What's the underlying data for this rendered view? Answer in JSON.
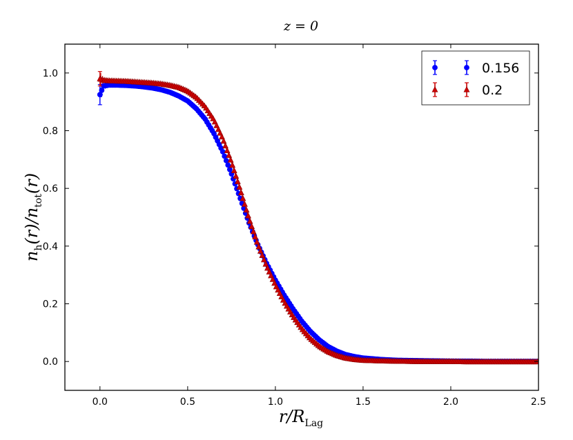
{
  "chart_data": {
    "type": "scatter",
    "title": "z = 0",
    "xlabel": "r / R_Lag",
    "ylabel": "n_h(r) / n_tot(r)",
    "xlim": [
      -0.2,
      2.5
    ],
    "ylim": [
      -0.1,
      1.1
    ],
    "xticks": [
      0.0,
      0.5,
      1.0,
      1.5,
      2.0,
      2.5
    ],
    "xtick_labels": [
      "0.0",
      "0.5",
      "1.0",
      "1.5",
      "2.0",
      "2.5"
    ],
    "yticks": [
      0.0,
      0.2,
      0.4,
      0.6,
      0.8,
      1.0
    ],
    "ytick_labels": [
      "0.0",
      "0.2",
      "0.4",
      "0.6",
      "0.8",
      "1.0"
    ],
    "grid": false,
    "legend_position": "top-right",
    "series": [
      {
        "name": "0.156",
        "marker": "circle",
        "color": "#0000ff",
        "x": [
          0.0,
          0.02,
          0.05,
          0.1,
          0.15,
          0.2,
          0.25,
          0.3,
          0.35,
          0.4,
          0.45,
          0.5,
          0.55,
          0.6,
          0.65,
          0.7,
          0.75,
          0.8,
          0.85,
          0.9,
          0.95,
          1.0,
          1.05,
          1.1,
          1.15,
          1.2,
          1.25,
          1.3,
          1.35,
          1.4,
          1.45,
          1.5,
          1.6,
          1.7,
          1.8,
          1.9,
          2.0,
          2.1,
          2.2,
          2.3,
          2.4,
          2.5
        ],
        "y": [
          0.925,
          0.955,
          0.958,
          0.958,
          0.957,
          0.955,
          0.952,
          0.948,
          0.942,
          0.933,
          0.92,
          0.903,
          0.876,
          0.84,
          0.79,
          0.727,
          0.65,
          0.565,
          0.48,
          0.405,
          0.34,
          0.282,
          0.23,
          0.183,
          0.14,
          0.104,
          0.075,
          0.052,
          0.036,
          0.024,
          0.017,
          0.012,
          0.007,
          0.004,
          0.003,
          0.002,
          0.001,
          0.001,
          0.0,
          0.0,
          0.0,
          0.0
        ],
        "yerr": [
          0.035,
          0.012,
          0.008,
          0.005,
          0.005,
          0.004,
          0.004,
          0.004,
          0.004,
          0.004,
          0.004,
          0.004,
          0.004,
          0.004,
          0.004,
          0.004,
          0.004,
          0.004,
          0.004,
          0.004,
          0.004,
          0.004,
          0.004,
          0.004,
          0.004,
          0.004,
          0.003,
          0.003,
          0.003,
          0.003,
          0.003,
          0.003,
          0.002,
          0.002,
          0.002,
          0.002,
          0.002,
          0.002,
          0.002,
          0.002,
          0.002,
          0.002
        ]
      },
      {
        "name": "0.2",
        "marker": "triangle",
        "color": "#cc0000",
        "x": [
          0.0,
          0.02,
          0.05,
          0.1,
          0.15,
          0.2,
          0.25,
          0.3,
          0.35,
          0.4,
          0.45,
          0.5,
          0.55,
          0.6,
          0.65,
          0.7,
          0.75,
          0.8,
          0.85,
          0.9,
          0.95,
          1.0,
          1.05,
          1.1,
          1.15,
          1.2,
          1.25,
          1.3,
          1.35,
          1.4,
          1.45,
          1.5,
          1.6,
          1.7,
          1.8,
          1.9,
          2.0,
          2.1,
          2.2,
          2.3,
          2.4,
          2.5
        ],
        "y": [
          0.98,
          0.975,
          0.973,
          0.972,
          0.971,
          0.969,
          0.967,
          0.965,
          0.962,
          0.957,
          0.95,
          0.937,
          0.915,
          0.883,
          0.837,
          0.772,
          0.69,
          0.595,
          0.495,
          0.405,
          0.33,
          0.265,
          0.207,
          0.157,
          0.114,
          0.079,
          0.053,
          0.034,
          0.021,
          0.012,
          0.007,
          0.004,
          0.002,
          0.001,
          0.0,
          0.0,
          0.0,
          -0.001,
          -0.001,
          -0.001,
          -0.001,
          -0.001
        ],
        "yerr": [
          0.025,
          0.01,
          0.006,
          0.005,
          0.005,
          0.004,
          0.004,
          0.004,
          0.004,
          0.004,
          0.004,
          0.004,
          0.004,
          0.004,
          0.004,
          0.004,
          0.004,
          0.004,
          0.004,
          0.004,
          0.004,
          0.004,
          0.004,
          0.004,
          0.004,
          0.004,
          0.003,
          0.003,
          0.003,
          0.003,
          0.003,
          0.003,
          0.002,
          0.002,
          0.002,
          0.002,
          0.002,
          0.002,
          0.002,
          0.002,
          0.002,
          0.002
        ]
      }
    ]
  }
}
